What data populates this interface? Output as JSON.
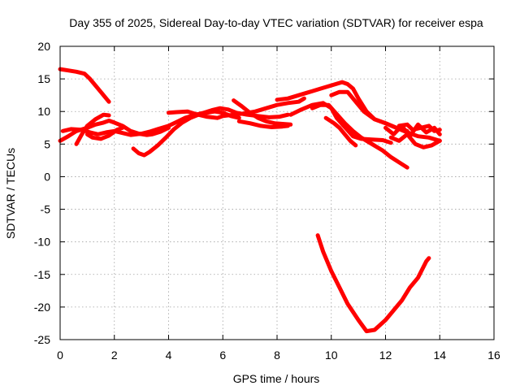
{
  "chart_data": {
    "type": "line",
    "title": "Day 355 of 2025, Sidereal Day-to-day VTEC variation (SDTVAR) for receiver espa",
    "xlabel": "GPS time / hours",
    "ylabel": "SDTVAR / TECUs",
    "xlim": [
      0,
      16
    ],
    "ylim": [
      -25,
      20
    ],
    "xticks": [
      0,
      2,
      4,
      6,
      8,
      10,
      12,
      14,
      16
    ],
    "yticks": [
      -25,
      -20,
      -15,
      -10,
      -5,
      0,
      5,
      10,
      15,
      20
    ],
    "grid": true,
    "legend": "none",
    "color": "#ff0000",
    "series": [
      {
        "name": "trace-1",
        "x": [
          0.0,
          0.3,
          0.6,
          0.9,
          1.1,
          1.3,
          1.5,
          1.7,
          1.8
        ],
        "y": [
          16.5,
          16.3,
          16.1,
          15.8,
          15.0,
          14.0,
          13.0,
          12.0,
          11.5
        ]
      },
      {
        "name": "trace-2",
        "x": [
          0.0,
          0.3,
          0.6,
          1.0,
          1.3,
          1.6,
          1.8,
          2.0,
          2.3,
          2.6,
          2.9,
          3.2,
          3.4,
          3.7,
          4.0
        ],
        "y": [
          5.5,
          6.2,
          7.0,
          7.5,
          8.0,
          8.3,
          8.6,
          8.3,
          7.8,
          7.0,
          6.6,
          6.4,
          6.5,
          6.9,
          7.5
        ]
      },
      {
        "name": "trace-3",
        "x": [
          0.1,
          0.4,
          0.8,
          1.1,
          1.4,
          1.7,
          2.0,
          2.3,
          2.6,
          3.0,
          3.3,
          3.6,
          4.0
        ],
        "y": [
          7.0,
          7.3,
          7.2,
          6.8,
          6.5,
          6.8,
          7.0,
          6.7,
          6.4,
          6.6,
          6.9,
          7.3,
          7.8
        ]
      },
      {
        "name": "trace-4",
        "x": [
          0.6,
          0.8,
          1.0,
          1.3,
          1.6,
          1.8
        ],
        "y": [
          5.0,
          6.5,
          7.8,
          8.8,
          9.5,
          9.4
        ]
      },
      {
        "name": "trace-5",
        "x": [
          1.0,
          1.2,
          1.5,
          1.8,
          2.1,
          2.3
        ],
        "y": [
          6.5,
          6.0,
          5.8,
          6.3,
          7.2,
          7.5
        ]
      },
      {
        "name": "trace-6",
        "x": [
          2.7,
          2.9,
          3.1,
          3.3,
          3.6,
          3.9,
          4.2,
          4.5,
          4.8,
          5.1,
          5.4,
          5.7,
          6.0,
          6.3,
          6.6
        ],
        "y": [
          4.3,
          3.6,
          3.3,
          3.8,
          4.8,
          6.0,
          7.3,
          8.3,
          9.0,
          9.5,
          9.8,
          10.0,
          9.8,
          9.3,
          9.0
        ]
      },
      {
        "name": "trace-7",
        "x": [
          4.0,
          4.3,
          4.7,
          5.0,
          5.4,
          5.8,
          6.0,
          6.4,
          6.8,
          7.2,
          7.6,
          8.0,
          8.4,
          8.8,
          9.0
        ],
        "y": [
          9.8,
          9.9,
          10.0,
          9.6,
          9.2,
          9.0,
          9.3,
          9.5,
          9.7,
          10.0,
          10.5,
          11.0,
          11.3,
          11.5,
          12.0
        ]
      },
      {
        "name": "trace-8",
        "x": [
          4.0,
          4.3,
          4.6,
          5.0,
          5.3,
          5.6,
          5.9,
          6.2,
          6.5,
          6.9,
          7.3,
          7.7,
          8.1,
          8.4
        ],
        "y": [
          7.8,
          8.4,
          9.0,
          9.5,
          9.8,
          10.2,
          10.5,
          10.3,
          9.8,
          9.5,
          9.3,
          9.1,
          9.2,
          9.5
        ]
      },
      {
        "name": "trace-9",
        "x": [
          6.4,
          6.7,
          7.0,
          7.3,
          7.6,
          7.9,
          8.2,
          8.5
        ],
        "y": [
          11.7,
          10.8,
          9.8,
          9.0,
          8.5,
          8.2,
          8.1,
          8.0
        ]
      },
      {
        "name": "trace-10",
        "x": [
          6.6,
          7.0,
          7.4,
          7.8,
          8.2,
          8.4
        ],
        "y": [
          8.5,
          8.2,
          7.8,
          7.6,
          7.7,
          7.8
        ]
      },
      {
        "name": "trace-11",
        "x": [
          8.0,
          8.4,
          8.8,
          9.2,
          9.6,
          10.0,
          10.4,
          10.6,
          10.8,
          11.0,
          11.3,
          11.6,
          12.0,
          12.4,
          12.8
        ],
        "y": [
          11.8,
          12.0,
          12.5,
          13.0,
          13.5,
          14.0,
          14.5,
          14.2,
          13.5,
          12.0,
          10.0,
          8.8,
          8.2,
          7.5,
          7.0
        ]
      },
      {
        "name": "trace-12",
        "x": [
          8.5,
          8.9,
          9.3,
          9.7,
          10.0,
          10.2,
          10.5,
          10.8,
          11.1,
          11.5,
          11.9,
          12.2
        ],
        "y": [
          9.5,
          10.3,
          11.0,
          11.3,
          10.5,
          9.0,
          7.6,
          6.2,
          5.8,
          5.7,
          5.6,
          5.2
        ]
      },
      {
        "name": "trace-13",
        "x": [
          9.3,
          9.6,
          9.9,
          10.2,
          10.5,
          10.8,
          11.1,
          11.5,
          11.9,
          12.2,
          12.5,
          12.8
        ],
        "y": [
          10.5,
          11.0,
          11.0,
          9.6,
          8.2,
          7.0,
          6.0,
          5.0,
          4.0,
          3.0,
          2.2,
          1.4
        ]
      },
      {
        "name": "trace-14",
        "x": [
          9.8,
          10.1,
          10.3,
          10.5,
          10.7,
          10.9
        ],
        "y": [
          9.0,
          8.2,
          7.5,
          6.5,
          5.5,
          4.8
        ]
      },
      {
        "name": "trace-15",
        "x": [
          10.0,
          10.3,
          10.6,
          10.9,
          11.2,
          11.6,
          12.0,
          12.4,
          12.8,
          13.2,
          13.6,
          14.0
        ],
        "y": [
          12.5,
          13.0,
          13.0,
          11.5,
          10.0,
          8.8,
          8.2,
          7.5,
          6.8,
          6.2,
          6.0,
          5.5
        ]
      },
      {
        "name": "trace-16",
        "x": [
          12.0,
          12.3,
          12.6,
          12.9,
          13.2,
          13.5,
          13.8,
          14.0
        ],
        "y": [
          7.5,
          6.5,
          7.8,
          6.2,
          8.0,
          6.8,
          7.5,
          6.5
        ]
      },
      {
        "name": "trace-17",
        "x": [
          12.2,
          12.5,
          12.8,
          13.1,
          13.4,
          13.7,
          14.0
        ],
        "y": [
          6.0,
          5.5,
          6.5,
          5.0,
          4.5,
          4.8,
          5.5
        ]
      },
      {
        "name": "trace-18",
        "x": [
          12.5,
          12.8,
          13.0,
          13.3,
          13.6,
          13.8,
          14.0
        ],
        "y": [
          7.8,
          8.0,
          7.2,
          7.5,
          7.8,
          7.0,
          7.2
        ]
      },
      {
        "name": "trace-19",
        "x": [
          9.5,
          9.7,
          10.0,
          10.3,
          10.6,
          11.0,
          11.3,
          11.6,
          12.0,
          12.3,
          12.6,
          12.9,
          13.2,
          13.5,
          13.6
        ],
        "y": [
          -9.0,
          -11.5,
          -14.5,
          -17.0,
          -19.5,
          -22.0,
          -23.7,
          -23.5,
          -22.0,
          -20.5,
          -19.0,
          -17.0,
          -15.5,
          -13.0,
          -12.5
        ]
      }
    ]
  }
}
